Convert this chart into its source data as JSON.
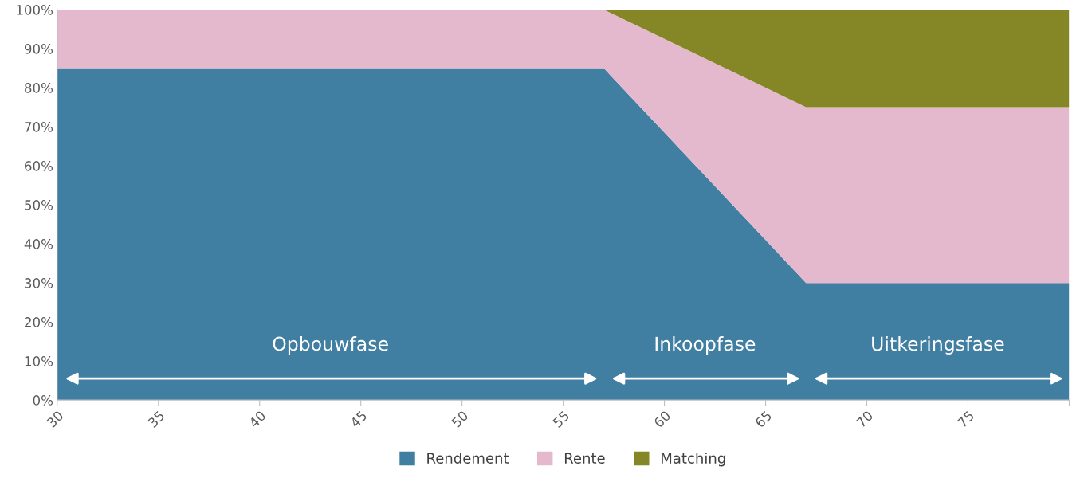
{
  "chart_data": {
    "type": "area",
    "stacked": true,
    "x": [
      30,
      57,
      67,
      80
    ],
    "series": [
      {
        "name": "Rendement",
        "color": "#417fa2",
        "values": [
          85,
          85,
          30,
          30
        ]
      },
      {
        "name": "Rente",
        "color": "#e5b9cd",
        "values": [
          15,
          15,
          45,
          45
        ]
      },
      {
        "name": "Matching",
        "color": "#858625",
        "values": [
          0,
          0,
          25,
          25
        ]
      }
    ],
    "xlim": [
      30,
      80
    ],
    "xticks": [
      30,
      35,
      40,
      45,
      50,
      55,
      60,
      65,
      70,
      75,
      {
        "value": 80,
        "label": null
      }
    ],
    "ylim": [
      0,
      100
    ],
    "yticks": [
      {
        "value": 0,
        "label": "0%"
      },
      {
        "value": 10,
        "label": "10%"
      },
      {
        "value": 20,
        "label": "20%"
      },
      {
        "value": 30,
        "label": "30%"
      },
      {
        "value": 40,
        "label": "40%"
      },
      {
        "value": 50,
        "label": "50%"
      },
      {
        "value": 60,
        "label": "60%"
      },
      {
        "value": 70,
        "label": "70%"
      },
      {
        "value": 80,
        "label": "80%"
      },
      {
        "value": 90,
        "label": "90%"
      },
      {
        "value": 100,
        "label": "100%"
      }
    ],
    "annotations": [
      "Opbouwfase",
      "Inkoopfase",
      "Uitkeringsfase"
    ],
    "grid": false,
    "legend": "bottom"
  }
}
